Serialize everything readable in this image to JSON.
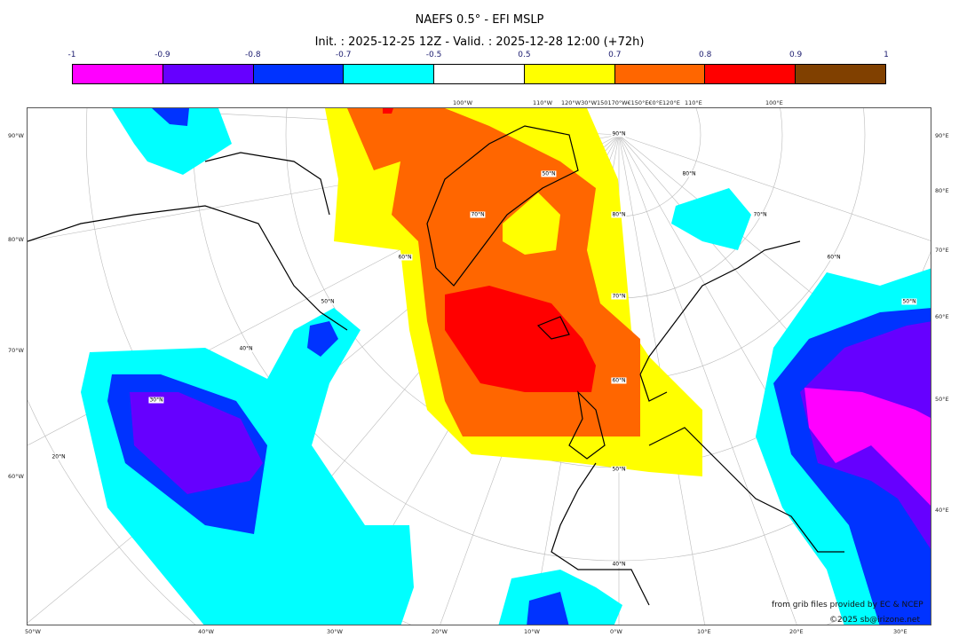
{
  "title": "NAEFS 0.5° - EFI MSLP",
  "subtitle": "Init. : 2025-12-25 12Z - Valid. : 2025-12-28 12:00 (+72h)",
  "colorbar": {
    "ticks": [
      "-1",
      "-0.9",
      "-0.8",
      "-0.7",
      "-0.5",
      "0.5",
      "0.7",
      "0.8",
      "0.9",
      "1"
    ],
    "colors": [
      "#ff00ff",
      "#6600ff",
      "#0033ff",
      "#00ffff",
      "#ffffff",
      "#ffff00",
      "#ff6600",
      "#ff0000",
      "#804000"
    ]
  },
  "axes": {
    "top": [
      "100°W",
      "110°W",
      "120°W30°W150170°W€150°E€0°E120°E",
      "110°E",
      "100°E"
    ],
    "left": [
      "90°W",
      "80°W",
      "70°W",
      "60°W"
    ],
    "right": [
      "90°E",
      "80°E",
      "70°E",
      "60°E",
      "50°E",
      "40°E"
    ],
    "bottom": [
      "50°W",
      "40°W",
      "30°W",
      "20°W",
      "10°W",
      "0°W",
      "10°E",
      "20°E",
      "30°E"
    ]
  },
  "lat_labels": [
    "90°N",
    "80°N",
    "70°N",
    "60°N",
    "50°N",
    "40°N",
    "50°N",
    "70°N",
    "60°N",
    "50°N",
    "40°N",
    "30°N",
    "20°N",
    "80°N",
    "70°N",
    "60°N",
    "50°N"
  ],
  "credits": {
    "source": "from grib files provided by EC & NCEP",
    "copyright": "©2025 sb@irizone.net"
  }
}
